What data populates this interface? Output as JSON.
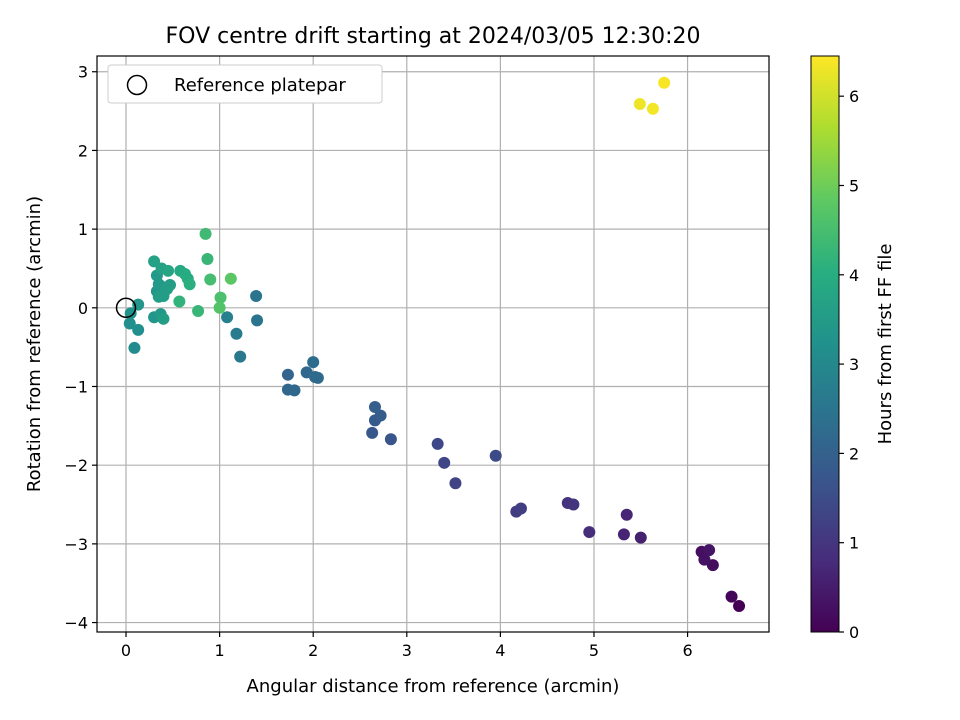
{
  "chart_data": {
    "type": "scatter",
    "title": "FOV centre drift starting at 2024/03/05 12:30:20",
    "xlabel": "Angular distance from reference (arcmin)",
    "ylabel": "Rotation from reference (arcmin)",
    "xlim": [
      -0.31,
      6.87
    ],
    "ylim": [
      -4.12,
      3.2
    ],
    "xticks": [
      0,
      1,
      2,
      3,
      4,
      5,
      6
    ],
    "yticks": [
      -4,
      -3,
      -2,
      -1,
      0,
      1,
      2,
      3
    ],
    "grid": true,
    "legend": {
      "placement": "top-left",
      "entries": [
        "Reference platepar"
      ]
    },
    "reference_point": {
      "x": 0,
      "y": 0,
      "label": "Reference platepar"
    },
    "colorbar": {
      "label": "Hours from first FF file",
      "colormap": "viridis",
      "range": [
        0,
        6.45
      ],
      "ticks": [
        0,
        1,
        2,
        3,
        4,
        5,
        6
      ]
    },
    "points": [
      {
        "x": 6.55,
        "y": -3.79,
        "h": 0.0
      },
      {
        "x": 6.47,
        "y": -3.67,
        "h": 0.1
      },
      {
        "x": 6.27,
        "y": -3.27,
        "h": 0.2
      },
      {
        "x": 6.15,
        "y": -3.1,
        "h": 0.25
      },
      {
        "x": 6.18,
        "y": -3.2,
        "h": 0.3
      },
      {
        "x": 6.23,
        "y": -3.08,
        "h": 0.35
      },
      {
        "x": 5.5,
        "y": -2.92,
        "h": 0.6
      },
      {
        "x": 5.32,
        "y": -2.88,
        "h": 0.65
      },
      {
        "x": 5.35,
        "y": -2.63,
        "h": 0.7
      },
      {
        "x": 4.95,
        "y": -2.85,
        "h": 0.85
      },
      {
        "x": 4.72,
        "y": -2.48,
        "h": 0.95
      },
      {
        "x": 4.78,
        "y": -2.5,
        "h": 1.0
      },
      {
        "x": 4.17,
        "y": -2.59,
        "h": 1.15
      },
      {
        "x": 4.22,
        "y": -2.55,
        "h": 1.2
      },
      {
        "x": 3.52,
        "y": -2.23,
        "h": 1.3
      },
      {
        "x": 3.4,
        "y": -1.97,
        "h": 1.35
      },
      {
        "x": 3.33,
        "y": -1.73,
        "h": 1.4
      },
      {
        "x": 3.95,
        "y": -1.88,
        "h": 1.45
      },
      {
        "x": 2.83,
        "y": -1.67,
        "h": 1.75
      },
      {
        "x": 2.63,
        "y": -1.59,
        "h": 1.8
      },
      {
        "x": 2.66,
        "y": -1.43,
        "h": 1.85
      },
      {
        "x": 2.72,
        "y": -1.37,
        "h": 1.9
      },
      {
        "x": 2.66,
        "y": -1.26,
        "h": 1.95
      },
      {
        "x": 1.73,
        "y": -0.85,
        "h": 2.1
      },
      {
        "x": 1.73,
        "y": -1.04,
        "h": 2.15
      },
      {
        "x": 1.8,
        "y": -1.05,
        "h": 2.2
      },
      {
        "x": 1.93,
        "y": -0.82,
        "h": 2.2
      },
      {
        "x": 2.02,
        "y": -0.88,
        "h": 2.25
      },
      {
        "x": 2.05,
        "y": -0.89,
        "h": 2.25
      },
      {
        "x": 2.0,
        "y": -0.69,
        "h": 2.3
      },
      {
        "x": 1.22,
        "y": -0.62,
        "h": 2.6
      },
      {
        "x": 1.18,
        "y": -0.33,
        "h": 2.7
      },
      {
        "x": 1.39,
        "y": 0.15,
        "h": 2.5
      },
      {
        "x": 1.4,
        "y": -0.16,
        "h": 2.5
      },
      {
        "x": 1.08,
        "y": -0.12,
        "h": 2.8
      },
      {
        "x": 0.09,
        "y": -0.51,
        "h": 3.1
      },
      {
        "x": 0.04,
        "y": -0.2,
        "h": 3.2
      },
      {
        "x": 0.13,
        "y": -0.28,
        "h": 3.2
      },
      {
        "x": 0.05,
        "y": -0.07,
        "h": 3.3
      },
      {
        "x": 0.13,
        "y": 0.04,
        "h": 3.4
      },
      {
        "x": 0.3,
        "y": -0.12,
        "h": 3.4
      },
      {
        "x": 0.37,
        "y": -0.08,
        "h": 3.5
      },
      {
        "x": 0.4,
        "y": -0.14,
        "h": 3.6
      },
      {
        "x": 0.33,
        "y": 0.21,
        "h": 3.4
      },
      {
        "x": 0.4,
        "y": 0.26,
        "h": 3.4
      },
      {
        "x": 0.35,
        "y": 0.3,
        "h": 3.5
      },
      {
        "x": 0.33,
        "y": 0.41,
        "h": 3.5
      },
      {
        "x": 0.4,
        "y": 0.15,
        "h": 3.6
      },
      {
        "x": 0.35,
        "y": 0.14,
        "h": 3.6
      },
      {
        "x": 0.44,
        "y": 0.24,
        "h": 3.6
      },
      {
        "x": 0.47,
        "y": 0.29,
        "h": 3.6
      },
      {
        "x": 0.3,
        "y": 0.59,
        "h": 3.7
      },
      {
        "x": 0.38,
        "y": 0.5,
        "h": 3.7
      },
      {
        "x": 0.45,
        "y": 0.47,
        "h": 3.8
      },
      {
        "x": 0.58,
        "y": 0.47,
        "h": 3.9
      },
      {
        "x": 0.63,
        "y": 0.43,
        "h": 4.0
      },
      {
        "x": 0.66,
        "y": 0.37,
        "h": 4.0
      },
      {
        "x": 0.68,
        "y": 0.3,
        "h": 4.1
      },
      {
        "x": 0.57,
        "y": 0.08,
        "h": 4.2
      },
      {
        "x": 0.77,
        "y": -0.04,
        "h": 4.3
      },
      {
        "x": 0.87,
        "y": 0.62,
        "h": 4.3
      },
      {
        "x": 0.85,
        "y": 0.94,
        "h": 4.4
      },
      {
        "x": 0.9,
        "y": 0.36,
        "h": 4.5
      },
      {
        "x": 1.01,
        "y": 0.13,
        "h": 4.6
      },
      {
        "x": 1.0,
        "y": 0.0,
        "h": 4.7
      },
      {
        "x": 1.12,
        "y": 0.37,
        "h": 4.8
      },
      {
        "x": 5.49,
        "y": 2.59,
        "h": 6.3
      },
      {
        "x": 5.63,
        "y": 2.53,
        "h": 6.35
      },
      {
        "x": 5.75,
        "y": 2.86,
        "h": 6.4
      }
    ]
  }
}
